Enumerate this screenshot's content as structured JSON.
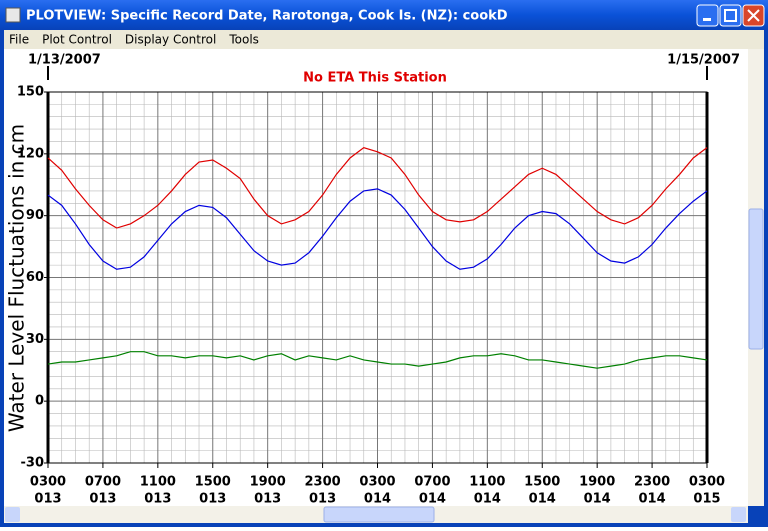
{
  "window": {
    "title": "PLOTVIEW: Specific Record Date, Rarotonga, Cook Is. (NZ): cookD",
    "menu": [
      "File",
      "Plot Control",
      "Display Control",
      "Tools"
    ]
  },
  "chart_data": {
    "type": "line",
    "start_date": "1/13/2007",
    "end_date": "1/15/2007",
    "title": "No ETA This Station",
    "y_label": "Water Level Fluctuations in cm",
    "categories": [
      "0300",
      null,
      null,
      null,
      "0700",
      null,
      null,
      null,
      "1100",
      null,
      null,
      null,
      "1500",
      null,
      null,
      null,
      "1900",
      null,
      null,
      null,
      "2300",
      null,
      null,
      null,
      "0300",
      null,
      null,
      null,
      "0700",
      null,
      null,
      null,
      "1100",
      null,
      null,
      null,
      "1500",
      null,
      null,
      null,
      "1900",
      null,
      null,
      null,
      "2300",
      null,
      null,
      null,
      "0300"
    ],
    "days": [
      "013",
      null,
      null,
      null,
      "013",
      null,
      null,
      null,
      "013",
      null,
      null,
      null,
      "013",
      null,
      null,
      null,
      "013",
      null,
      null,
      null,
      "013",
      null,
      null,
      null,
      "014",
      null,
      null,
      null,
      "014",
      null,
      null,
      null,
      "014",
      null,
      null,
      null,
      "014",
      null,
      null,
      null,
      "014",
      null,
      null,
      null,
      "014",
      null,
      null,
      null,
      "015"
    ],
    "series": [
      {
        "color": "#e00000",
        "values": [
          118,
          112,
          103,
          95,
          88,
          84,
          86,
          90,
          95,
          102,
          110,
          116,
          117,
          113,
          108,
          98,
          90,
          86,
          88,
          92,
          100,
          110,
          118,
          123,
          121,
          118,
          110,
          100,
          92,
          88,
          87,
          88,
          92,
          98,
          104,
          110,
          113,
          110,
          104,
          98,
          92,
          88,
          86,
          89,
          95,
          103,
          110,
          118,
          123
        ]
      },
      {
        "color": "#0000e0",
        "values": [
          100,
          95,
          86,
          76,
          68,
          64,
          65,
          70,
          78,
          86,
          92,
          95,
          94,
          89,
          81,
          73,
          68,
          66,
          67,
          72,
          80,
          89,
          97,
          102,
          103,
          100,
          93,
          84,
          75,
          68,
          64,
          65,
          69,
          76,
          84,
          90,
          92,
          91,
          86,
          79,
          72,
          68,
          67,
          70,
          76,
          84,
          91,
          97,
          102
        ]
      },
      {
        "color": "#008000",
        "values": [
          18,
          19,
          19,
          20,
          21,
          22,
          24,
          24,
          22,
          22,
          21,
          22,
          22,
          21,
          22,
          20,
          22,
          23,
          20,
          22,
          21,
          20,
          22,
          20,
          19,
          18,
          18,
          17,
          18,
          19,
          21,
          22,
          22,
          23,
          22,
          20,
          20,
          19,
          18,
          17,
          16,
          17,
          18,
          20,
          21,
          22,
          22,
          21,
          20
        ]
      }
    ],
    "ylim": [
      -30,
      150
    ],
    "yticks": [
      -30,
      0,
      30,
      60,
      90,
      120,
      150
    ],
    "grid": true
  }
}
